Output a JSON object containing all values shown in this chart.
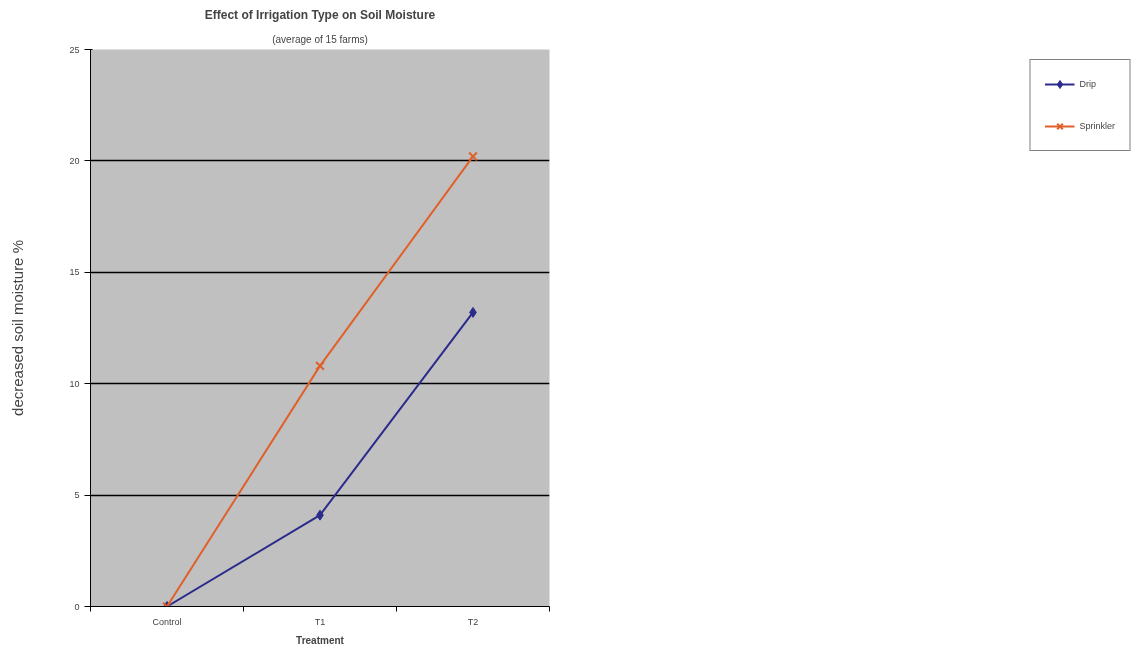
{
  "chart_data": {
    "type": "line",
    "title": "Effect of Irrigation Type on Soil Moisture",
    "subtitle": "(average of 15 farms)",
    "xlabel": "Treatment",
    "ylabel": "decreased soil moisture %",
    "categories": [
      "Control",
      "T1",
      "T2"
    ],
    "series": [
      {
        "name": "Drip",
        "color": "#2b2b8c",
        "marker": "diamond",
        "values": [
          0,
          4.1,
          13.2
        ]
      },
      {
        "name": "Sprinkler",
        "color": "#e0602a",
        "marker": "cross",
        "values": [
          0,
          10.8,
          20.2
        ]
      }
    ],
    "ylim": [
      0,
      25
    ],
    "yticks": [
      0,
      5,
      10,
      15,
      20,
      25
    ],
    "grid": "y",
    "legend": "right",
    "line_style": "solid"
  }
}
